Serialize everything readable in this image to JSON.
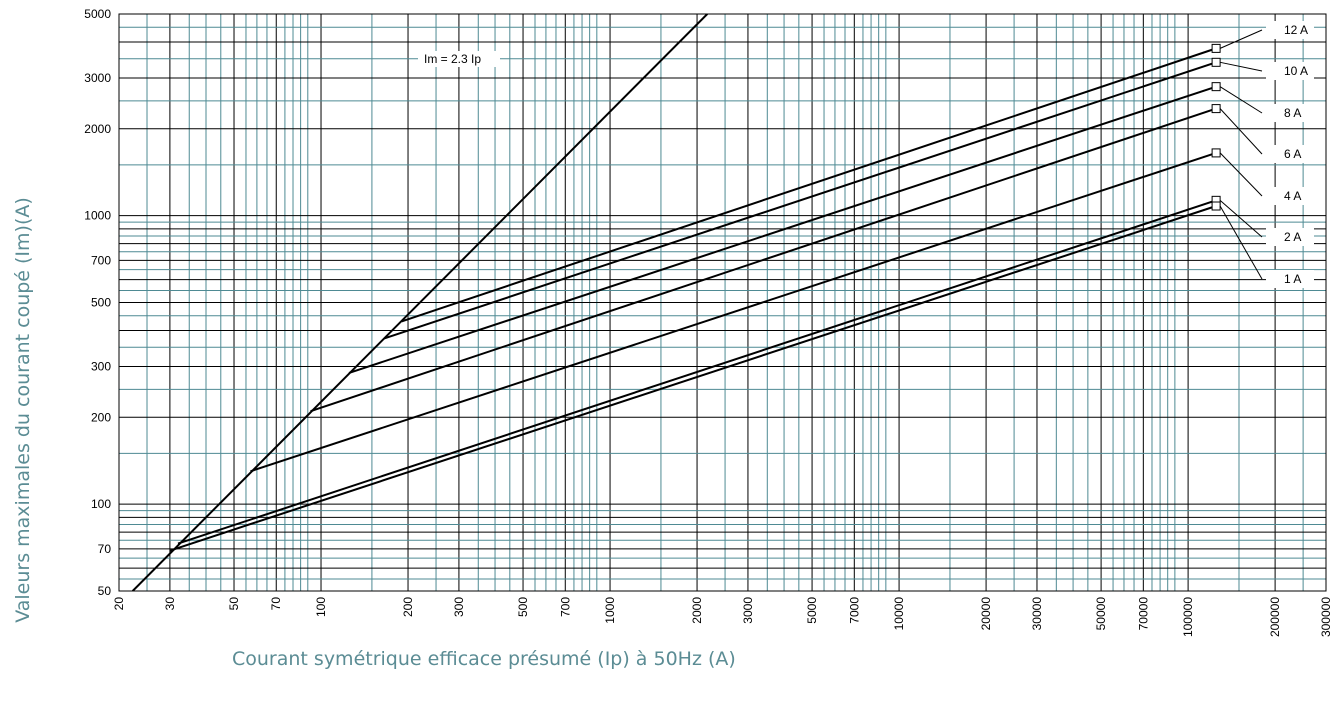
{
  "chart_data": {
    "type": "line",
    "xscale": "log",
    "yscale": "log",
    "xlim": [
      20,
      300000
    ],
    "ylim": [
      50,
      5000
    ],
    "xlabel": "Courant symétrique efficace présumé (Ip) à 50Hz (A)",
    "ylabel": "Valeurs maximales du courant coupé (Im)(A)",
    "x_ticks": [
      "20",
      "30",
      "50",
      "70",
      "100",
      "200",
      "300",
      "500",
      "700",
      "1000",
      "2000",
      "3000",
      "5000",
      "7000",
      "10000",
      "20000",
      "30000",
      "50000",
      "70000",
      "100000",
      "200000",
      "300000"
    ],
    "y_ticks": [
      "50",
      "70",
      "100",
      "200",
      "300",
      "500",
      "700",
      "1000",
      "2000",
      "3000",
      "5000"
    ],
    "reference_line": {
      "label": "Im = 2.3 Ip",
      "x": [
        22.3,
        2170
      ],
      "y": [
        50,
        5000
      ]
    },
    "series": [
      {
        "name": "12 A",
        "x": [
          190,
          125000
        ],
        "y": [
          430,
          3800
        ]
      },
      {
        "name": "10 A",
        "x": [
          165,
          125000
        ],
        "y": [
          375,
          3400
        ]
      },
      {
        "name": "8 A",
        "x": [
          125,
          125000
        ],
        "y": [
          285,
          2800
        ]
      },
      {
        "name": "6 A",
        "x": [
          92,
          125000
        ],
        "y": [
          210,
          2350
        ]
      },
      {
        "name": "4 A",
        "x": [
          57,
          125000
        ],
        "y": [
          130,
          1650
        ]
      },
      {
        "name": "2 A",
        "x": [
          32,
          125000
        ],
        "y": [
          73,
          1130
        ]
      },
      {
        "name": "1 A",
        "x": [
          30,
          125000
        ],
        "y": [
          69,
          1080
        ]
      }
    ],
    "grid": true
  }
}
